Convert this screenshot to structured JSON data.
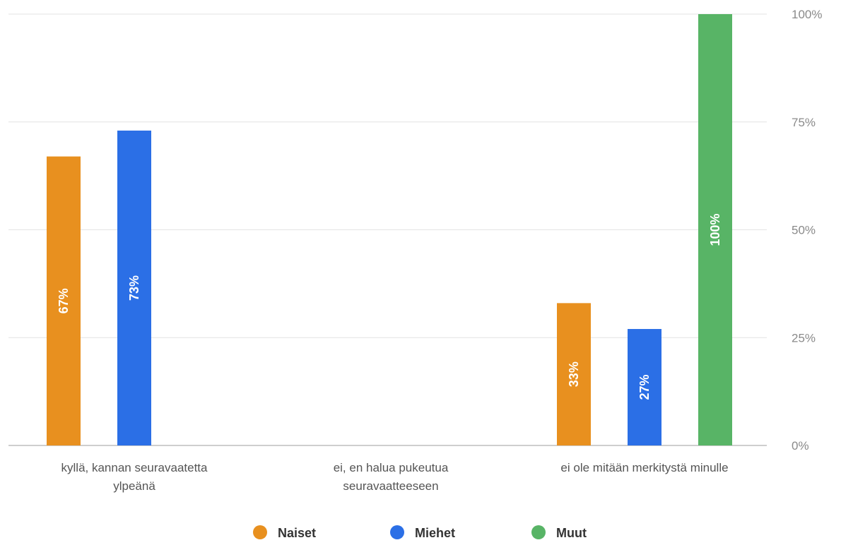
{
  "chart_data": {
    "type": "bar",
    "categories": [
      [
        "kyllä, kannan seuravaatetta",
        "ylpeänä"
      ],
      [
        "ei, en halua pukeutua",
        "seuravaatteeseen"
      ],
      [
        "ei ole mitään merkitystä minulle"
      ]
    ],
    "series": [
      {
        "name": "Naiset",
        "color": "#e8901f",
        "values": [
          67,
          0,
          33
        ]
      },
      {
        "name": "Miehet",
        "color": "#2b6fe6",
        "values": [
          73,
          0,
          27
        ]
      },
      {
        "name": "Muut",
        "color": "#58b466",
        "values": [
          0,
          0,
          100
        ]
      }
    ],
    "ylim": [
      0,
      100
    ],
    "yticks": [
      0,
      25,
      50,
      75,
      100
    ],
    "ytick_suffix": "%",
    "y_axis_side": "right",
    "grid": true,
    "legend_position": "bottom",
    "data_labels": true
  }
}
